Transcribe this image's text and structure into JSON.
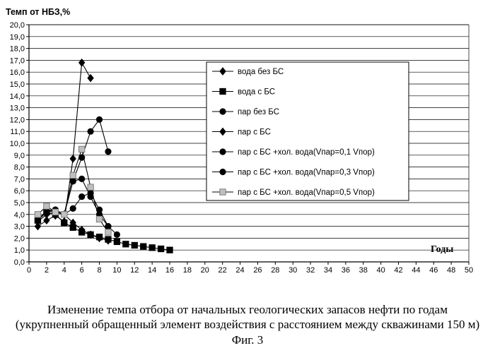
{
  "chart_data": {
    "type": "line",
    "title": "",
    "xlabel": "Годы",
    "ylabel": "Темп от НБЗ,%",
    "xlim": [
      0,
      50
    ],
    "ylim": [
      0,
      20
    ],
    "x_ticks": [
      0,
      2,
      4,
      6,
      8,
      10,
      12,
      14,
      16,
      18,
      20,
      22,
      24,
      26,
      28,
      30,
      32,
      34,
      36,
      38,
      40,
      42,
      44,
      46,
      48,
      50
    ],
    "y_ticks": [
      "0,0",
      "1,0",
      "2,0",
      "3,0",
      "4,0",
      "5,0",
      "6,0",
      "7,0",
      "8,0",
      "9,0",
      "10,0",
      "11,0",
      "12,0",
      "13,0",
      "14,0",
      "15,0",
      "16,0",
      "17,0",
      "18,0",
      "19,0",
      "20,0"
    ],
    "grid": true,
    "legend_position": "right",
    "series": [
      {
        "name": "вода  без БС",
        "marker": "diamond",
        "color": "#000000",
        "x": [
          1,
          2,
          3,
          4,
          5,
          6,
          7
        ],
        "y": [
          3.0,
          3.5,
          3.9,
          3.4,
          8.7,
          16.8,
          15.5
        ]
      },
      {
        "name": "вода с БС",
        "marker": "square",
        "color": "#000000",
        "x": [
          1,
          2,
          3,
          4,
          5,
          6,
          7,
          8,
          9,
          10,
          11,
          12,
          13,
          14,
          15,
          16
        ],
        "y": [
          3.5,
          4.2,
          4.0,
          3.3,
          2.9,
          2.5,
          2.3,
          2.1,
          1.9,
          1.7,
          1.5,
          1.4,
          1.3,
          1.2,
          1.1,
          1.0
        ]
      },
      {
        "name": "пар без БС",
        "marker": "circle",
        "color": "#000000",
        "x": [
          1,
          2,
          3,
          4,
          5,
          6,
          7,
          8,
          9
        ],
        "y": [
          3.5,
          4.2,
          4.4,
          4.0,
          6.8,
          8.8,
          11.0,
          12.0,
          9.3
        ]
      },
      {
        "name": "пар с БС",
        "marker": "diamond",
        "color": "#000000",
        "x": [
          1,
          2,
          3,
          4,
          5,
          6,
          7,
          8,
          9
        ],
        "y": [
          3.4,
          4.0,
          4.2,
          4.0,
          3.3,
          2.7,
          2.3,
          2.0,
          1.8
        ]
      },
      {
        "name": "пар с БС +хол. вода(Vпар=0,1 Vпор)",
        "marker": "circle",
        "color": "#000000",
        "x": [
          1,
          2,
          3,
          4,
          5,
          6,
          7,
          8,
          9,
          10
        ],
        "y": [
          3.6,
          4.3,
          4.4,
          4.0,
          4.5,
          5.5,
          5.8,
          4.4,
          3.0,
          2.3
        ]
      },
      {
        "name": "пар с БС +хол. вода(Vпар=0,3 Vпор)",
        "marker": "circle",
        "color": "#000000",
        "x": [
          1,
          2,
          3,
          4,
          5,
          6,
          7,
          8,
          9
        ],
        "y": [
          3.5,
          4.3,
          4.2,
          4.0,
          6.8,
          7.0,
          5.5,
          4.0,
          3.0
        ]
      },
      {
        "name": "пар с БС +хол. вода(Vпар=0,5 Vпор)",
        "marker": "square",
        "color": "#bfbfbf",
        "x": [
          1,
          2,
          3,
          4,
          5,
          6,
          7,
          8,
          9
        ],
        "y": [
          4.0,
          4.7,
          4.2,
          4.0,
          7.3,
          9.5,
          6.3,
          3.6,
          2.5
        ]
      }
    ]
  },
  "caption": {
    "line1": "Изменение темпа отбора от начальных геологических запасов нефти по годам",
    "line2": "(укрупненный обращенный элемент воздействия с расстоянием между скважинами 150 м)",
    "line3": "Фиг. 3"
  }
}
